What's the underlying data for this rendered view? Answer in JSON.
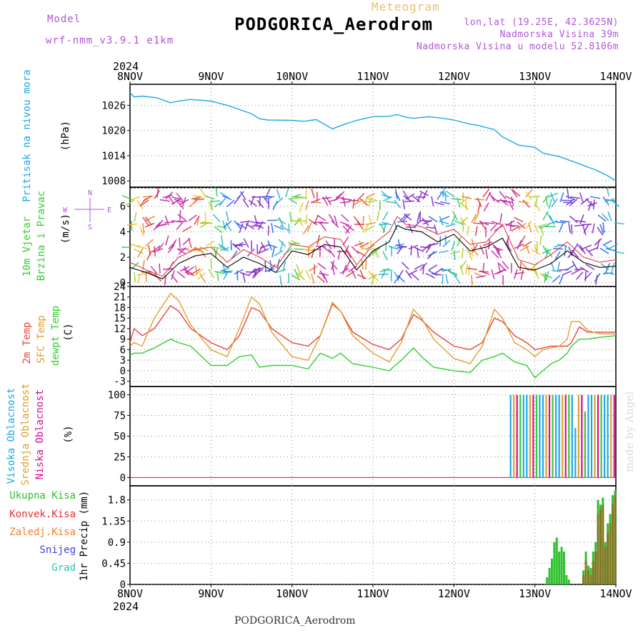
{
  "header": {
    "model_label": "Model",
    "model_name": "wrf-nmm_v3.9.1 e1km",
    "meteogram_label": "Meteogram",
    "station_title": "PODGORICA_Aerodrom",
    "coords": "lon,lat (19.25E, 42.3625N)",
    "elevation": "Nadmorska Visina 39m",
    "model_elevation": "Nadmorska Visina u modelu 52.8106m"
  },
  "footer": {
    "station": "PODGORICA_Aerodrom",
    "credit": "made by Angel"
  },
  "colors": {
    "pressure": "#1ea8e6",
    "t2m": "#e8443c",
    "sfc": "#e0a030",
    "dewpt": "#30d030",
    "cloud_high": "#1ea8e6",
    "cloud_mid": "#e0a030",
    "cloud_low": "#d01090",
    "rain_total": "#30c030",
    "rain_conv": "#e83030",
    "freezing": "#f08030",
    "snow": "#4040e0",
    "hail": "#30c0b0"
  },
  "time_axis": {
    "year": "2024",
    "ticks": [
      "8NOV",
      "9NOV",
      "10NOV",
      "11NOV",
      "12NOV",
      "13NOV",
      "14NOV"
    ]
  },
  "chart_data": [
    {
      "type": "line",
      "panel": "pressure",
      "ylabel_lines": [
        "Pritisak na nivou mora",
        "(hPa)"
      ],
      "y_ticks": [
        "1008",
        "1014",
        "1020",
        "1026"
      ],
      "ylim": [
        1006.5,
        1031
      ],
      "x_days": [
        0,
        0.05,
        0.15,
        0.33,
        0.5,
        0.6,
        0.75,
        1.0,
        1.2,
        1.5,
        1.6,
        1.7,
        2.0,
        2.15,
        2.3,
        2.5,
        2.65,
        2.8,
        3.0,
        3.2,
        3.3,
        3.4,
        3.5,
        3.7,
        3.9,
        4.0,
        4.2,
        4.3,
        4.5,
        4.6,
        4.8,
        5.0,
        5.1,
        5.3,
        5.5,
        5.75,
        5.9,
        6.0
      ],
      "series": [
        {
          "values": [
            1029,
            1028,
            1028.2,
            1027.8,
            1026.6,
            1027,
            1027.4,
            1027,
            1026,
            1024,
            1022.8,
            1022.5,
            1022.4,
            1022.2,
            1022.6,
            1020.4,
            1021.5,
            1022.4,
            1023.3,
            1023.4,
            1023.8,
            1023.2,
            1022.9,
            1023.3,
            1022.8,
            1022.5,
            1021.5,
            1021.2,
            1020.2,
            1018.5,
            1016.5,
            1016,
            1014.6,
            1013.8,
            1012.4,
            1010.6,
            1009.2,
            1008
          ]
        }
      ]
    },
    {
      "type": "line",
      "panel": "wind",
      "ylabel_lines": [
        "10m Vjetar",
        "Brzina i Pravac",
        "(m/s)"
      ],
      "compass": {
        "n": "N",
        "s": "S",
        "e": "E",
        "w": "W"
      },
      "y_ticks": [
        "0",
        "2",
        "4",
        "6"
      ],
      "ylim": [
        -0.3,
        7.5
      ],
      "x_days": [
        0,
        0.2,
        0.4,
        0.6,
        0.8,
        1.0,
        1.2,
        1.4,
        1.6,
        1.8,
        2.0,
        2.2,
        2.4,
        2.6,
        2.8,
        3.0,
        3.2,
        3.3,
        3.4,
        3.6,
        3.8,
        4.0,
        4.2,
        4.4,
        4.6,
        4.8,
        5.0,
        5.2,
        5.4,
        5.6,
        5.8,
        6.0
      ],
      "series": [
        {
          "name": "wind speed",
          "values": [
            1.2,
            0.8,
            0.3,
            1.5,
            2.1,
            2.3,
            1.2,
            2.0,
            1.5,
            0.8,
            2.5,
            2.2,
            3.0,
            2.8,
            1.0,
            2.5,
            3.2,
            4.5,
            4.2,
            4.0,
            3.2,
            3.8,
            2.5,
            2.8,
            3.5,
            1.2,
            1.0,
            1.5,
            2.5,
            1.6,
            1.2,
            1.3
          ]
        },
        {
          "name": "gust",
          "values": [
            1.6,
            1.0,
            0.5,
            2.0,
            2.6,
            2.8,
            1.6,
            2.6,
            2.0,
            1.2,
            3.0,
            2.8,
            3.6,
            3.4,
            1.4,
            3.0,
            4.0,
            5.2,
            4.6,
            4.4,
            3.8,
            4.2,
            3.0,
            3.2,
            4.6,
            1.8,
            1.4,
            2.2,
            3.2,
            2.0,
            1.6,
            1.8
          ]
        }
      ]
    },
    {
      "type": "line",
      "panel": "temperature",
      "ylabel_lines": [
        "2m Temp",
        "SFC Temp",
        "dewpt Temp",
        "(C)"
      ],
      "y_ticks": [
        "-3",
        "0",
        "3",
        "6",
        "9",
        "12",
        "15",
        "18",
        "21",
        "24"
      ],
      "ylim": [
        -4.5,
        24
      ],
      "x_days": [
        0,
        0.05,
        0.15,
        0.3,
        0.5,
        0.6,
        0.75,
        1.0,
        1.2,
        1.35,
        1.5,
        1.6,
        1.75,
        2.0,
        2.2,
        2.35,
        2.5,
        2.6,
        2.75,
        3.0,
        3.2,
        3.35,
        3.5,
        3.6,
        3.75,
        4.0,
        4.2,
        4.35,
        4.5,
        4.6,
        4.75,
        4.9,
        5.0,
        5.1,
        5.2,
        5.3,
        5.4,
        5.45,
        5.55,
        5.65,
        5.8,
        6.0
      ],
      "series": [
        {
          "name": "2m Temp",
          "values": [
            8,
            12,
            10,
            12,
            18.5,
            17,
            12,
            8,
            6,
            10,
            18,
            17,
            12,
            8,
            7,
            10,
            19,
            17,
            11,
            7.5,
            6,
            9,
            16,
            14.5,
            11,
            7,
            6,
            8,
            15,
            14,
            10,
            8,
            6,
            6.5,
            7,
            7,
            7,
            8,
            12.5,
            11,
            11,
            11
          ]
        },
        {
          "name": "SFC Temp",
          "values": [
            7,
            8,
            7,
            15,
            22,
            20,
            13,
            6,
            4,
            12,
            21,
            19,
            11,
            4,
            3,
            10,
            19.5,
            17,
            10,
            5,
            2.5,
            8,
            17.5,
            15,
            9,
            3.5,
            2,
            7,
            17.5,
            15,
            8,
            6,
            4,
            6,
            6.5,
            7,
            9,
            14,
            14,
            11.5,
            10.5,
            10.5
          ]
        },
        {
          "name": "dewpt Temp",
          "values": [
            4.5,
            5,
            5,
            6.5,
            9,
            8,
            7,
            1.5,
            1.5,
            4,
            4.5,
            1,
            1.5,
            1.5,
            0.5,
            5,
            3.5,
            5,
            2,
            1,
            0,
            3,
            6.5,
            4,
            1,
            0,
            -0.5,
            3,
            4,
            5,
            2.5,
            1.5,
            -2,
            0,
            2,
            3,
            5,
            7,
            9,
            9,
            9.5,
            10
          ]
        }
      ]
    },
    {
      "type": "bar",
      "panel": "cloud",
      "ylabel_lines": [
        "Visoka Oblacnost",
        "Srednja Oblacnost",
        "Niska Oblacnost",
        "(%)"
      ],
      "y_ticks": [
        "0",
        "25",
        "50",
        "75",
        "100"
      ],
      "ylim": [
        -10,
        110
      ],
      "x_start_day": 4.7,
      "x_end_day": 6.0,
      "series": [
        {
          "name": "Visoka Oblacnost",
          "values": [
            100
          ]
        },
        {
          "name": "Srednja Oblacnost",
          "values": [
            100
          ]
        },
        {
          "name": "Niska Oblacnost",
          "values": [
            100
          ]
        }
      ],
      "note": "cloud cover ~100% from day 4.7 to 6.0 with some lower values (~60-80%) around day 5.6"
    },
    {
      "type": "bar",
      "panel": "precip",
      "ylabel_lines": [
        "1hr Precip (mm)"
      ],
      "legend": [
        "Ukupna Kisa",
        "Konvek.Kisa",
        "Zaledj.Kisa",
        "Snijeg",
        "Grad"
      ],
      "y_ticks": [
        "0",
        "0.45",
        "0.9",
        "1.35",
        "1.8"
      ],
      "ylim": [
        0,
        2.1
      ],
      "x_days": [
        5.15,
        5.18,
        5.21,
        5.24,
        5.27,
        5.3,
        5.33,
        5.36,
        5.39,
        5.42,
        5.6,
        5.63,
        5.66,
        5.69,
        5.72,
        5.75,
        5.78,
        5.81,
        5.84,
        5.87,
        5.9,
        5.93,
        5.96,
        5.99
      ],
      "series": [
        {
          "name": "Ukupna Kisa",
          "values": [
            0.15,
            0.35,
            0.55,
            0.9,
            1.0,
            0.7,
            0.8,
            0.7,
            0.2,
            0.1,
            0.3,
            0.7,
            0.4,
            0.35,
            0.7,
            0.9,
            1.8,
            1.7,
            1.85,
            0.9,
            1.3,
            1.5,
            1.9,
            2.0
          ]
        },
        {
          "name": "Konvek.Kisa",
          "values": [
            0,
            0,
            0,
            0,
            0,
            0,
            0,
            0,
            0,
            0,
            0.2,
            0.5,
            0.3,
            0.2,
            0.5,
            0.7,
            1.5,
            1.6,
            1.7,
            0.8,
            1.1,
            1.3,
            1.7,
            1.9
          ]
        }
      ]
    }
  ]
}
